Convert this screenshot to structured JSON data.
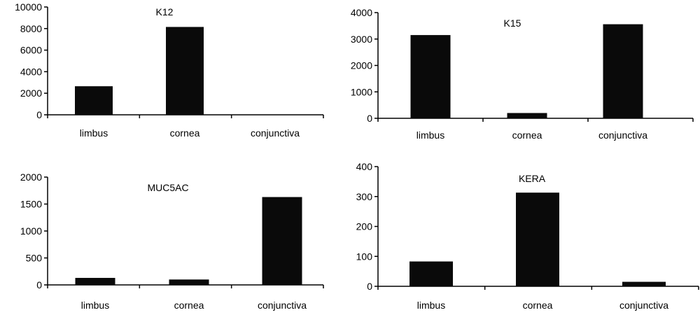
{
  "chart_data": [
    {
      "type": "bar",
      "title": "K12",
      "categories": [
        "limbus",
        "cornea",
        "conjunctiva"
      ],
      "values": [
        2650,
        8150,
        0
      ],
      "ylim": [
        0,
        10000
      ],
      "yticks": [
        0,
        2000,
        4000,
        6000,
        8000,
        10000
      ],
      "xlabel": "",
      "ylabel": "",
      "grid": false,
      "bar_color": "#0a0a0a"
    },
    {
      "type": "bar",
      "title": "K15",
      "categories": [
        "limbus",
        "cornea",
        "conjunctiva"
      ],
      "values": [
        3150,
        200,
        3560
      ],
      "ylim": [
        0,
        4000
      ],
      "yticks": [
        0,
        1000,
        2000,
        3000,
        4000
      ],
      "xlabel": "",
      "ylabel": "",
      "grid": false,
      "bar_color": "#0a0a0a"
    },
    {
      "type": "bar",
      "title": "MUC5AC",
      "categories": [
        "limbus",
        "cornea",
        "conjunctiva"
      ],
      "values": [
        130,
        100,
        1630
      ],
      "ylim": [
        0,
        2000
      ],
      "yticks": [
        0,
        500,
        1000,
        1500,
        2000
      ],
      "xlabel": "",
      "ylabel": "",
      "grid": false,
      "bar_color": "#0a0a0a"
    },
    {
      "type": "bar",
      "title": "KERA",
      "categories": [
        "limbus",
        "cornea",
        "conjunctiva"
      ],
      "values": [
        83,
        313,
        15
      ],
      "ylim": [
        0,
        400
      ],
      "yticks": [
        0,
        100,
        200,
        300,
        400
      ],
      "xlabel": "",
      "ylabel": "",
      "grid": false,
      "bar_color": "#0a0a0a"
    }
  ]
}
